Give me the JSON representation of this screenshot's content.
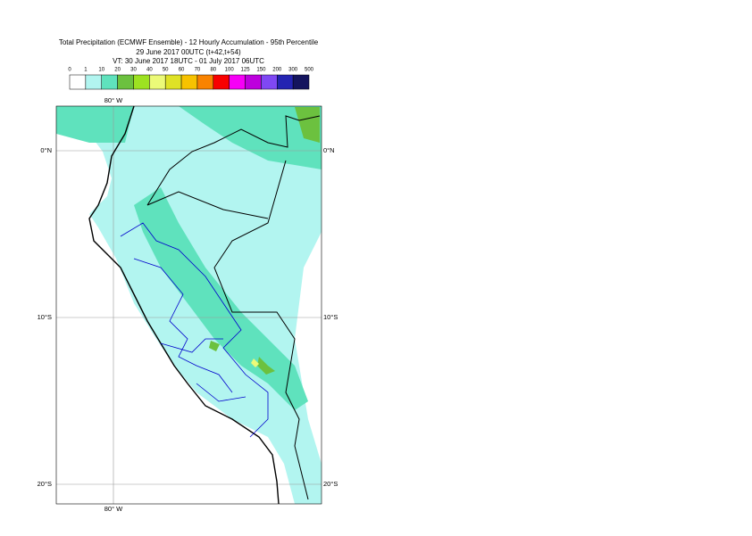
{
  "header": {
    "lines": [
      "Total Precipitation (ECMWF Ensemble) - 12 Hourly Accumulation - 95th Percentile",
      "29 June 2017 00UTC (t+42,t+54)",
      "VT: 30 June 2017 18UTC - 01 July 2017 06UTC"
    ]
  },
  "colorbar": {
    "labels": [
      "0",
      "1",
      "10",
      "20",
      "30",
      "40",
      "50",
      "60",
      "70",
      "80",
      "100",
      "125",
      "150",
      "200",
      "300",
      "500"
    ],
    "colors": [
      "#ffffff",
      "#b2f5f0",
      "#5fe2bd",
      "#6cc13f",
      "#9de221",
      "#ecfa78",
      "#dfe226",
      "#f7c200",
      "#f98300",
      "#f80000",
      "#f600f6",
      "#bd00dd",
      "#7f48f4",
      "#2424b2",
      "#14145e"
    ]
  },
  "map": {
    "lon_labels": [
      "80° W",
      "80° W"
    ],
    "lat_labels": [
      "0°N",
      "10°S",
      "20°S"
    ]
  }
}
